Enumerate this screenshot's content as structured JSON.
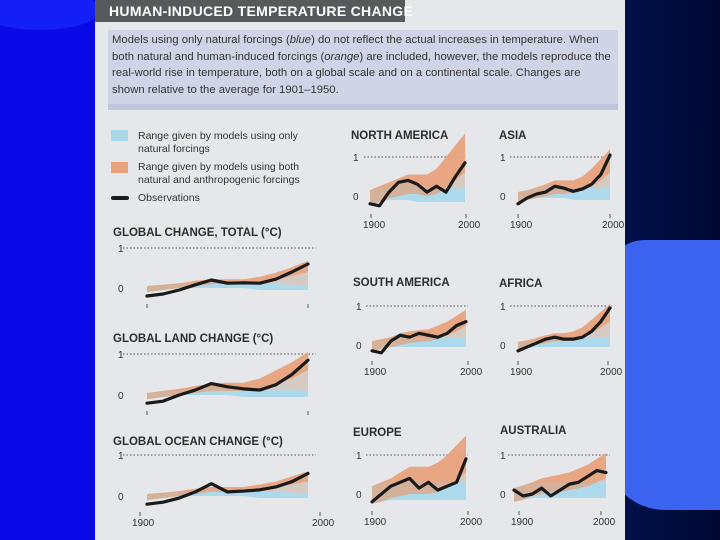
{
  "slide": {
    "banner_title": "HUMAN-INDUCED TEMPERATURE CHANGE",
    "intro_parts": [
      "Models using only natural forcings (",
      "blue",
      ") do not reflect the actual increases in temperature. When both natural and human-induced forcings (",
      "orange",
      ") are included, however, the models reproduce the real-world rise in temperature, both on a global scale and on a continental scale. Changes are shown relative to the average for 1901–1950."
    ]
  },
  "legend": [
    {
      "label": "Range given by models using only natural forcings",
      "color": "#a9d8ec"
    },
    {
      "label": "Range given by models using both natural and anthropogenic forcings",
      "color": "#e8a27c"
    },
    {
      "label": "Observations",
      "color": "#1a1a1a"
    }
  ],
  "colors": {
    "natural": "#a9d8ec",
    "anthro": "#e8a27c",
    "obs": "#1a1a1a"
  },
  "chart_data": [
    {
      "type": "area",
      "title": "GLOBAL CHANGE, TOTAL (°C)",
      "x": [
        1900,
        1910,
        1920,
        1930,
        1940,
        1950,
        1960,
        1970,
        1980,
        1990,
        2000
      ],
      "yticks": [
        "1",
        "0"
      ],
      "xlabels": [],
      "series": [
        {
          "name": "natural",
          "lower": [
            -0.1,
            -0.05,
            0,
            0,
            0,
            0,
            0,
            -0.05,
            -0.05,
            -0.05,
            -0.05
          ],
          "upper": [
            0.05,
            0.08,
            0.1,
            0.12,
            0.15,
            0.13,
            0.12,
            0.1,
            0.1,
            0.08,
            0.05
          ]
        },
        {
          "name": "anthropogenic",
          "lower": [
            -0.1,
            -0.05,
            0,
            0.05,
            0.1,
            0.1,
            0.1,
            0.12,
            0.2,
            0.3,
            0.4
          ],
          "upper": [
            0.05,
            0.08,
            0.12,
            0.18,
            0.22,
            0.22,
            0.22,
            0.28,
            0.38,
            0.52,
            0.68
          ]
        },
        {
          "name": "observations",
          "values": [
            -0.2,
            -0.15,
            -0.05,
            0.08,
            0.2,
            0.12,
            0.13,
            0.12,
            0.22,
            0.4,
            0.6
          ]
        }
      ]
    },
    {
      "type": "area",
      "title": "GLOBAL LAND CHANGE (°C)",
      "x": [
        1900,
        1910,
        1920,
        1930,
        1940,
        1950,
        1960,
        1970,
        1980,
        1990,
        2000
      ],
      "yticks": [
        "1",
        "0"
      ],
      "xlabels": [],
      "series": [
        {
          "name": "natural",
          "lower": [
            -0.1,
            -0.05,
            0,
            0,
            0,
            0,
            -0.05,
            -0.05,
            -0.05,
            -0.05,
            -0.05
          ],
          "upper": [
            0.05,
            0.08,
            0.1,
            0.15,
            0.18,
            0.15,
            0.15,
            0.12,
            0.12,
            0.12,
            0.1
          ]
        },
        {
          "name": "anthropogenic",
          "lower": [
            -0.1,
            -0.05,
            0,
            0.05,
            0.1,
            0.1,
            0.1,
            0.15,
            0.25,
            0.4,
            0.6
          ],
          "upper": [
            0.05,
            0.1,
            0.15,
            0.22,
            0.28,
            0.3,
            0.3,
            0.4,
            0.6,
            0.8,
            1.05
          ]
        },
        {
          "name": "observations",
          "values": [
            -0.2,
            -0.15,
            0,
            0.12,
            0.28,
            0.2,
            0.15,
            0.12,
            0.25,
            0.5,
            0.85
          ]
        }
      ]
    },
    {
      "type": "area",
      "title": "GLOBAL OCEAN CHANGE (°C)",
      "x": [
        1900,
        1910,
        1920,
        1930,
        1940,
        1950,
        1960,
        1970,
        1980,
        1990,
        2000
      ],
      "yticks": [
        "1",
        "0"
      ],
      "xlabels": [
        "1900",
        "2000"
      ],
      "series": [
        {
          "name": "natural",
          "lower": [
            -0.1,
            -0.05,
            0,
            0,
            0,
            0,
            0,
            -0.05,
            -0.05,
            -0.05,
            -0.05
          ],
          "upper": [
            0.05,
            0.08,
            0.1,
            0.12,
            0.15,
            0.13,
            0.12,
            0.1,
            0.1,
            0.08,
            0.05
          ]
        },
        {
          "name": "anthropogenic",
          "lower": [
            -0.1,
            -0.05,
            0,
            0.05,
            0.1,
            0.1,
            0.1,
            0.12,
            0.2,
            0.28,
            0.35
          ],
          "upper": [
            0.05,
            0.08,
            0.12,
            0.18,
            0.22,
            0.22,
            0.22,
            0.28,
            0.35,
            0.48,
            0.6
          ]
        },
        {
          "name": "observations",
          "values": [
            -0.2,
            -0.15,
            -0.05,
            0.1,
            0.3,
            0.1,
            0.12,
            0.15,
            0.22,
            0.35,
            0.55
          ]
        }
      ]
    },
    {
      "type": "area",
      "title": "NORTH AMERICA",
      "x": [
        1900,
        1910,
        1920,
        1930,
        1940,
        1950,
        1960,
        1970,
        1980,
        1990,
        2000
      ],
      "yticks": [
        "1",
        "0"
      ],
      "xlabels": [
        "1900",
        "2000"
      ],
      "series": [
        {
          "name": "natural",
          "lower": [
            -0.2,
            -0.15,
            -0.1,
            -0.1,
            -0.1,
            -0.15,
            -0.15,
            -0.15,
            -0.15,
            -0.15,
            -0.15
          ],
          "upper": [
            0.15,
            0.2,
            0.25,
            0.3,
            0.35,
            0.3,
            0.25,
            0.2,
            0.2,
            0.2,
            0.2
          ]
        },
        {
          "name": "anthropogenic",
          "lower": [
            -0.2,
            -0.15,
            -0.05,
            0,
            0.05,
            0.05,
            0,
            0.05,
            0.2,
            0.4,
            0.6
          ],
          "upper": [
            0.15,
            0.25,
            0.35,
            0.45,
            0.55,
            0.55,
            0.55,
            0.7,
            1,
            1.3,
            1.6
          ]
        },
        {
          "name": "observations",
          "values": [
            -0.2,
            -0.25,
            0.1,
            0.35,
            0.4,
            0.3,
            0.1,
            0.25,
            0.1,
            0.5,
            0.85
          ]
        }
      ]
    },
    {
      "type": "area",
      "title": "ASIA",
      "x": [
        1900,
        1910,
        1920,
        1930,
        1940,
        1950,
        1960,
        1970,
        1980,
        1990,
        2000
      ],
      "yticks": [
        "1",
        "0"
      ],
      "xlabels": [
        "1900",
        "2000"
      ],
      "series": [
        {
          "name": "natural",
          "lower": [
            -0.15,
            -0.1,
            -0.05,
            -0.05,
            -0.05,
            -0.05,
            -0.1,
            -0.1,
            -0.1,
            -0.1,
            -0.1
          ],
          "upper": [
            0.1,
            0.15,
            0.2,
            0.25,
            0.3,
            0.25,
            0.2,
            0.2,
            0.2,
            0.2,
            0.2
          ]
        },
        {
          "name": "anthropogenic",
          "lower": [
            -0.15,
            -0.1,
            -0.05,
            0,
            0.05,
            0.05,
            0.1,
            0.15,
            0.25,
            0.4,
            0.6
          ],
          "upper": [
            0.1,
            0.15,
            0.22,
            0.3,
            0.4,
            0.4,
            0.4,
            0.5,
            0.7,
            0.95,
            1.2
          ]
        },
        {
          "name": "observations",
          "values": [
            -0.2,
            -0.05,
            0.05,
            0.1,
            0.25,
            0.2,
            0.12,
            0.18,
            0.3,
            0.55,
            1.05
          ]
        }
      ]
    },
    {
      "type": "area",
      "title": "SOUTH AMERICA",
      "x": [
        1900,
        1910,
        1920,
        1930,
        1940,
        1950,
        1960,
        1970,
        1980,
        1990,
        2000
      ],
      "yticks": [
        "1",
        "0"
      ],
      "xlabels": [
        "1900",
        "2000"
      ],
      "series": [
        {
          "name": "natural",
          "lower": [
            -0.15,
            -0.1,
            -0.05,
            -0.05,
            -0.05,
            -0.05,
            -0.05,
            -0.05,
            -0.05,
            -0.05,
            -0.05
          ],
          "upper": [
            0.1,
            0.12,
            0.15,
            0.2,
            0.22,
            0.2,
            0.2,
            0.2,
            0.2,
            0.2,
            0.2
          ]
        },
        {
          "name": "anthropogenic",
          "lower": [
            -0.15,
            -0.1,
            -0.05,
            0,
            0.05,
            0.08,
            0.1,
            0.15,
            0.25,
            0.35,
            0.5
          ],
          "upper": [
            0.1,
            0.15,
            0.2,
            0.3,
            0.35,
            0.38,
            0.4,
            0.5,
            0.6,
            0.75,
            0.9
          ]
        },
        {
          "name": "observations",
          "values": [
            -0.15,
            -0.2,
            0.1,
            0.25,
            0.2,
            0.3,
            0.25,
            0.2,
            0.3,
            0.5,
            0.6
          ]
        }
      ]
    },
    {
      "type": "area",
      "title": "AFRICA",
      "x": [
        1900,
        1910,
        1920,
        1930,
        1940,
        1950,
        1960,
        1970,
        1980,
        1990,
        2000
      ],
      "yticks": [
        "1",
        "0"
      ],
      "xlabels": [
        "1900",
        "2000"
      ],
      "series": [
        {
          "name": "natural",
          "lower": [
            -0.1,
            -0.08,
            -0.05,
            -0.05,
            -0.05,
            -0.05,
            -0.05,
            -0.05,
            -0.05,
            -0.05,
            -0.05
          ],
          "upper": [
            0.08,
            0.1,
            0.12,
            0.15,
            0.18,
            0.18,
            0.18,
            0.18,
            0.18,
            0.18,
            0.18
          ]
        },
        {
          "name": "anthropogenic",
          "lower": [
            -0.1,
            -0.05,
            0,
            0.05,
            0.1,
            0.1,
            0.12,
            0.18,
            0.3,
            0.45,
            0.6
          ],
          "upper": [
            0.08,
            0.12,
            0.18,
            0.25,
            0.3,
            0.3,
            0.35,
            0.45,
            0.65,
            0.85,
            1.05
          ]
        },
        {
          "name": "observations",
          "values": [
            -0.15,
            -0.05,
            0.05,
            0.15,
            0.2,
            0.15,
            0.15,
            0.2,
            0.35,
            0.6,
            0.95
          ]
        }
      ]
    },
    {
      "type": "area",
      "title": "EUROPE",
      "x": [
        1900,
        1910,
        1920,
        1930,
        1940,
        1950,
        1960,
        1970,
        1980,
        1990,
        2000
      ],
      "yticks": [
        "1",
        "0"
      ],
      "xlabels": [
        "1900",
        "2000"
      ],
      "series": [
        {
          "name": "natural",
          "lower": [
            -0.25,
            -0.2,
            -0.15,
            -0.15,
            -0.15,
            -0.15,
            -0.15,
            -0.15,
            -0.15,
            -0.15,
            -0.15
          ],
          "upper": [
            0.2,
            0.25,
            0.3,
            0.35,
            0.4,
            0.35,
            0.3,
            0.3,
            0.3,
            0.3,
            0.3
          ]
        },
        {
          "name": "anthropogenic",
          "lower": [
            -0.25,
            -0.2,
            -0.1,
            -0.05,
            0,
            0,
            0,
            0.05,
            0.15,
            0.35,
            0.55
          ],
          "upper": [
            0.2,
            0.3,
            0.4,
            0.55,
            0.7,
            0.7,
            0.7,
            0.8,
            1,
            1.25,
            1.5
          ]
        },
        {
          "name": "observations",
          "values": [
            -0.2,
            0,
            0.2,
            0.3,
            0.4,
            0.15,
            0.3,
            0.1,
            0.2,
            0.3,
            0.9
          ]
        }
      ]
    },
    {
      "type": "area",
      "title": "AUSTRALIA",
      "x": [
        1900,
        1910,
        1920,
        1930,
        1940,
        1950,
        1960,
        1970,
        1980,
        1990,
        2000
      ],
      "yticks": [
        "1",
        "0"
      ],
      "xlabels": [
        "1900",
        "2000"
      ],
      "series": [
        {
          "name": "natural",
          "lower": [
            -0.2,
            -0.15,
            -0.1,
            -0.1,
            -0.1,
            -0.1,
            -0.1,
            -0.1,
            -0.1,
            -0.1,
            -0.1
          ],
          "upper": [
            0.15,
            0.2,
            0.25,
            0.3,
            0.3,
            0.3,
            0.3,
            0.3,
            0.3,
            0.3,
            0.3
          ]
        },
        {
          "name": "anthropogenic",
          "lower": [
            -0.2,
            -0.15,
            -0.05,
            0,
            0.05,
            0.05,
            0.1,
            0.15,
            0.2,
            0.3,
            0.4
          ],
          "upper": [
            0.15,
            0.22,
            0.3,
            0.4,
            0.45,
            0.5,
            0.55,
            0.65,
            0.75,
            0.9,
            1.05
          ]
        },
        {
          "name": "observations",
          "values": [
            0.1,
            -0.05,
            0,
            0.15,
            -0.05,
            0.1,
            0.25,
            0.3,
            0.45,
            0.6,
            0.55
          ]
        }
      ]
    }
  ]
}
